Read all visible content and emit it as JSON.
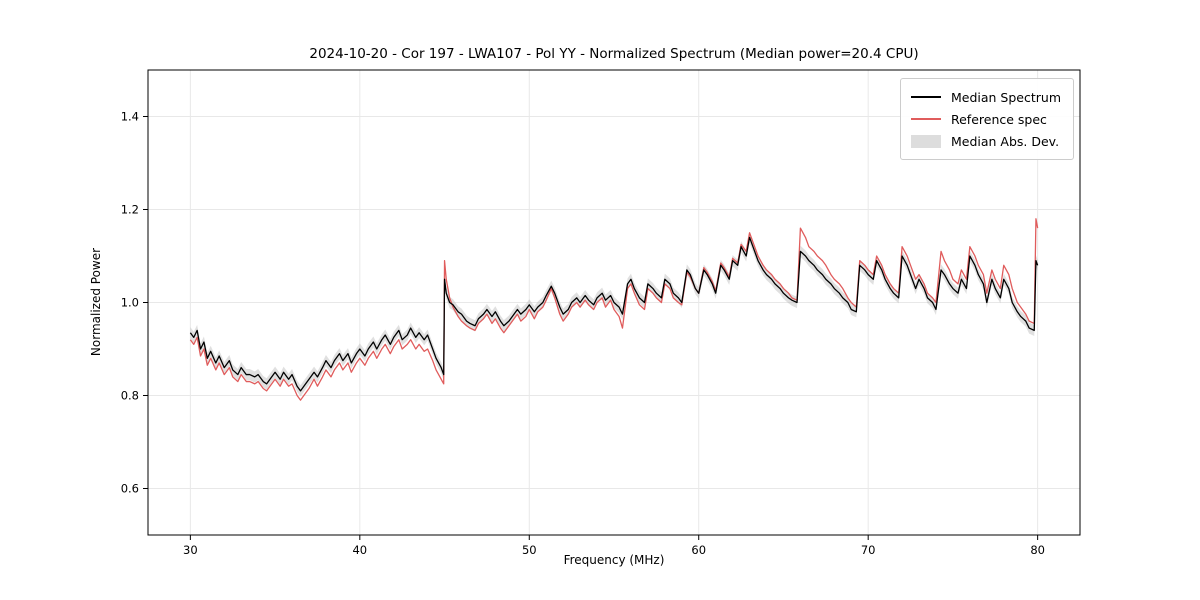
{
  "figure": {
    "background": "#ffffff"
  },
  "chart_data": {
    "type": "line",
    "title": "2024-10-20 - Cor 197 - LWA107 - Pol YY - Normalized Spectrum (Median power=20.4 CPU)",
    "xlabel": "Frequency (MHz)",
    "ylabel": "Normalized Power",
    "xlim": [
      27.5,
      82.5
    ],
    "ylim": [
      0.5,
      1.5
    ],
    "xticks": [
      30,
      40,
      50,
      60,
      70,
      80
    ],
    "xtick_labels": [
      "30",
      "40",
      "50",
      "60",
      "70",
      "80"
    ],
    "yticks": [
      0.6,
      0.8,
      1.0,
      1.2,
      1.4
    ],
    "ytick_labels": [
      "0.6",
      "0.8",
      "1.0",
      "1.2",
      "1.4"
    ],
    "grid": true,
    "grid_color": "#e8e8e8",
    "mad_halfwidth": 0.012,
    "legend": {
      "position": "upper right",
      "entries": [
        {
          "label": "Median Spectrum",
          "type": "line",
          "color": "#000000"
        },
        {
          "label": "Reference spec",
          "type": "line",
          "color": "#e05c5c"
        },
        {
          "label": "Median Abs. Dev.",
          "type": "patch",
          "color": "#bbbbbb"
        }
      ]
    },
    "x": [
      30.0,
      30.2,
      30.4,
      30.6,
      30.8,
      31.0,
      31.2,
      31.5,
      31.7,
      32.0,
      32.3,
      32.5,
      32.8,
      33.0,
      33.3,
      33.5,
      33.8,
      34.0,
      34.3,
      34.5,
      34.8,
      35.0,
      35.3,
      35.5,
      35.8,
      36.0,
      36.3,
      36.5,
      36.8,
      37.0,
      37.3,
      37.5,
      37.8,
      38.0,
      38.3,
      38.5,
      38.8,
      39.0,
      39.3,
      39.5,
      39.8,
      40.0,
      40.3,
      40.5,
      40.8,
      41.0,
      41.3,
      41.5,
      41.8,
      42.0,
      42.3,
      42.5,
      42.8,
      43.0,
      43.3,
      43.5,
      43.8,
      44.0,
      44.3,
      44.5,
      44.8,
      44.95,
      45.0,
      45.1,
      45.3,
      45.5,
      45.8,
      46.0,
      46.3,
      46.5,
      46.8,
      47.0,
      47.3,
      47.5,
      47.8,
      48.0,
      48.3,
      48.5,
      48.8,
      49.0,
      49.3,
      49.5,
      49.8,
      50.0,
      50.3,
      50.5,
      50.8,
      51.0,
      51.3,
      51.5,
      51.8,
      52.0,
      52.3,
      52.5,
      52.8,
      53.0,
      53.3,
      53.5,
      53.8,
      54.0,
      54.3,
      54.5,
      54.8,
      55.0,
      55.3,
      55.5,
      55.8,
      56.0,
      56.2,
      56.5,
      56.8,
      57.0,
      57.3,
      57.5,
      57.8,
      58.0,
      58.3,
      58.5,
      58.8,
      59.0,
      59.3,
      59.5,
      59.8,
      60.0,
      60.3,
      60.5,
      60.8,
      61.0,
      61.3,
      61.5,
      61.8,
      62.0,
      62.3,
      62.5,
      62.8,
      63.0,
      63.2,
      63.5,
      63.8,
      64.0,
      64.3,
      64.5,
      64.8,
      65.0,
      65.3,
      65.5,
      65.8,
      66.0,
      66.3,
      66.5,
      66.8,
      67.0,
      67.3,
      67.5,
      67.8,
      68.0,
      68.3,
      68.5,
      68.8,
      69.0,
      69.3,
      69.5,
      69.8,
      70.0,
      70.3,
      70.5,
      70.8,
      71.0,
      71.3,
      71.5,
      71.8,
      72.0,
      72.3,
      72.5,
      72.8,
      73.0,
      73.3,
      73.5,
      73.8,
      74.0,
      74.3,
      74.5,
      74.8,
      75.0,
      75.3,
      75.5,
      75.8,
      76.0,
      76.3,
      76.5,
      76.8,
      77.0,
      77.3,
      77.5,
      77.8,
      78.0,
      78.3,
      78.5,
      78.8,
      79.0,
      79.3,
      79.5,
      79.8,
      79.9,
      80.0
    ],
    "series": [
      {
        "name": "Median Spectrum",
        "color": "#000000",
        "values": [
          0.935,
          0.925,
          0.94,
          0.9,
          0.915,
          0.88,
          0.895,
          0.87,
          0.885,
          0.86,
          0.875,
          0.855,
          0.845,
          0.86,
          0.845,
          0.845,
          0.84,
          0.845,
          0.83,
          0.825,
          0.84,
          0.85,
          0.835,
          0.85,
          0.835,
          0.845,
          0.82,
          0.81,
          0.825,
          0.835,
          0.85,
          0.84,
          0.86,
          0.875,
          0.86,
          0.875,
          0.89,
          0.875,
          0.89,
          0.87,
          0.89,
          0.9,
          0.885,
          0.9,
          0.915,
          0.9,
          0.92,
          0.93,
          0.91,
          0.925,
          0.94,
          0.92,
          0.93,
          0.945,
          0.925,
          0.935,
          0.92,
          0.93,
          0.9,
          0.88,
          0.86,
          0.845,
          1.05,
          1.02,
          1.0,
          0.995,
          0.98,
          0.975,
          0.96,
          0.955,
          0.95,
          0.965,
          0.975,
          0.985,
          0.97,
          0.98,
          0.96,
          0.95,
          0.96,
          0.97,
          0.985,
          0.975,
          0.985,
          0.995,
          0.98,
          0.99,
          1.0,
          1.015,
          1.035,
          1.02,
          0.99,
          0.975,
          0.985,
          1.0,
          1.01,
          1.0,
          1.015,
          1.005,
          0.995,
          1.01,
          1.02,
          1.005,
          1.015,
          1.0,
          0.99,
          0.975,
          1.04,
          1.05,
          1.03,
          1.01,
          1.0,
          1.04,
          1.03,
          1.02,
          1.01,
          1.05,
          1.04,
          1.02,
          1.01,
          1.0,
          1.07,
          1.06,
          1.03,
          1.02,
          1.07,
          1.06,
          1.04,
          1.02,
          1.08,
          1.07,
          1.05,
          1.09,
          1.08,
          1.12,
          1.1,
          1.14,
          1.12,
          1.09,
          1.07,
          1.06,
          1.05,
          1.04,
          1.03,
          1.02,
          1.01,
          1.005,
          1.0,
          1.11,
          1.1,
          1.09,
          1.08,
          1.07,
          1.06,
          1.05,
          1.04,
          1.03,
          1.02,
          1.01,
          1.0,
          0.985,
          0.98,
          1.08,
          1.07,
          1.06,
          1.05,
          1.09,
          1.07,
          1.05,
          1.03,
          1.02,
          1.01,
          1.1,
          1.08,
          1.06,
          1.03,
          1.05,
          1.03,
          1.01,
          1.0,
          0.985,
          1.07,
          1.06,
          1.04,
          1.03,
          1.02,
          1.05,
          1.03,
          1.1,
          1.08,
          1.06,
          1.04,
          1.0,
          1.05,
          1.03,
          1.01,
          1.05,
          1.03,
          1.0,
          0.98,
          0.97,
          0.96,
          0.945,
          0.94,
          1.09,
          1.08
        ]
      },
      {
        "name": "Reference spec",
        "color": "#e05c5c",
        "values": [
          0.92,
          0.91,
          0.925,
          0.885,
          0.9,
          0.865,
          0.88,
          0.855,
          0.87,
          0.845,
          0.86,
          0.84,
          0.83,
          0.845,
          0.83,
          0.83,
          0.825,
          0.83,
          0.815,
          0.81,
          0.825,
          0.835,
          0.82,
          0.835,
          0.82,
          0.825,
          0.8,
          0.79,
          0.805,
          0.815,
          0.835,
          0.82,
          0.84,
          0.855,
          0.84,
          0.855,
          0.87,
          0.855,
          0.87,
          0.85,
          0.87,
          0.88,
          0.865,
          0.88,
          0.895,
          0.88,
          0.9,
          0.91,
          0.89,
          0.905,
          0.92,
          0.9,
          0.91,
          0.92,
          0.9,
          0.91,
          0.895,
          0.9,
          0.875,
          0.855,
          0.835,
          0.825,
          1.09,
          1.05,
          1.01,
          0.99,
          0.97,
          0.96,
          0.95,
          0.945,
          0.94,
          0.955,
          0.965,
          0.975,
          0.955,
          0.965,
          0.945,
          0.935,
          0.95,
          0.96,
          0.975,
          0.96,
          0.97,
          0.985,
          0.965,
          0.98,
          0.99,
          1.005,
          1.03,
          1.01,
          0.975,
          0.96,
          0.975,
          0.99,
          1.0,
          0.99,
          1.005,
          0.995,
          0.985,
          1.0,
          1.01,
          0.99,
          1.005,
          0.985,
          0.97,
          0.945,
          1.03,
          1.04,
          1.02,
          0.995,
          0.985,
          1.03,
          1.02,
          1.01,
          1.0,
          1.04,
          1.03,
          1.01,
          1.0,
          0.995,
          1.065,
          1.055,
          1.03,
          1.02,
          1.075,
          1.065,
          1.045,
          1.025,
          1.085,
          1.075,
          1.055,
          1.095,
          1.085,
          1.125,
          1.11,
          1.15,
          1.13,
          1.1,
          1.08,
          1.07,
          1.06,
          1.05,
          1.04,
          1.03,
          1.02,
          1.01,
          1.005,
          1.16,
          1.14,
          1.12,
          1.11,
          1.1,
          1.09,
          1.08,
          1.06,
          1.05,
          1.04,
          1.03,
          1.01,
          1.0,
          0.99,
          1.09,
          1.08,
          1.07,
          1.06,
          1.1,
          1.08,
          1.06,
          1.04,
          1.03,
          1.02,
          1.12,
          1.1,
          1.08,
          1.05,
          1.06,
          1.04,
          1.02,
          1.01,
          1.0,
          1.11,
          1.09,
          1.07,
          1.05,
          1.04,
          1.07,
          1.05,
          1.12,
          1.1,
          1.08,
          1.06,
          1.02,
          1.07,
          1.05,
          1.03,
          1.08,
          1.06,
          1.03,
          1.0,
          0.99,
          0.975,
          0.96,
          0.955,
          1.18,
          1.16
        ]
      }
    ]
  }
}
